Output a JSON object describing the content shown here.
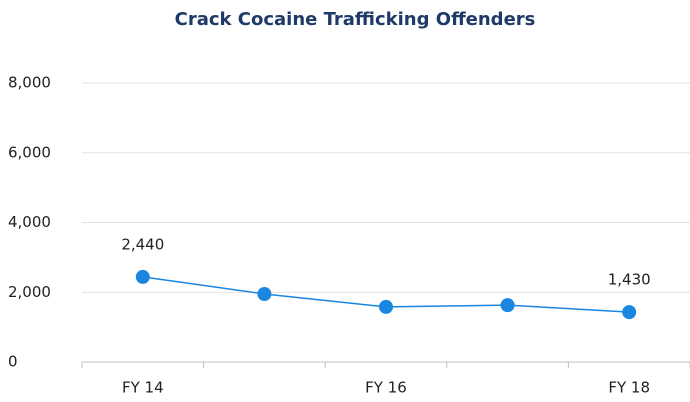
{
  "chart_data": {
    "type": "line",
    "title": "Crack Cocaine Trafficking Offenders",
    "categories": [
      "FY 14",
      null,
      "FY 16",
      null,
      "FY 18"
    ],
    "series": [
      {
        "name": "Crack Cocaine Trafficking Offenders",
        "color": "#1a86e0",
        "values": [
          2440,
          1950,
          1580,
          1630,
          1430
        ],
        "value_labels": [
          "2,440",
          null,
          null,
          null,
          "1,430"
        ]
      }
    ],
    "ylim": [
      0,
      8000
    ],
    "yticks": [
      0,
      {
        "value": 2000,
        "label": "2,000"
      },
      {
        "value": 4000,
        "label": "4,000"
      },
      {
        "value": 6000,
        "label": "6,000"
      },
      {
        "value": 8000,
        "label": "8,000"
      }
    ],
    "grid": true,
    "legend": false
  }
}
